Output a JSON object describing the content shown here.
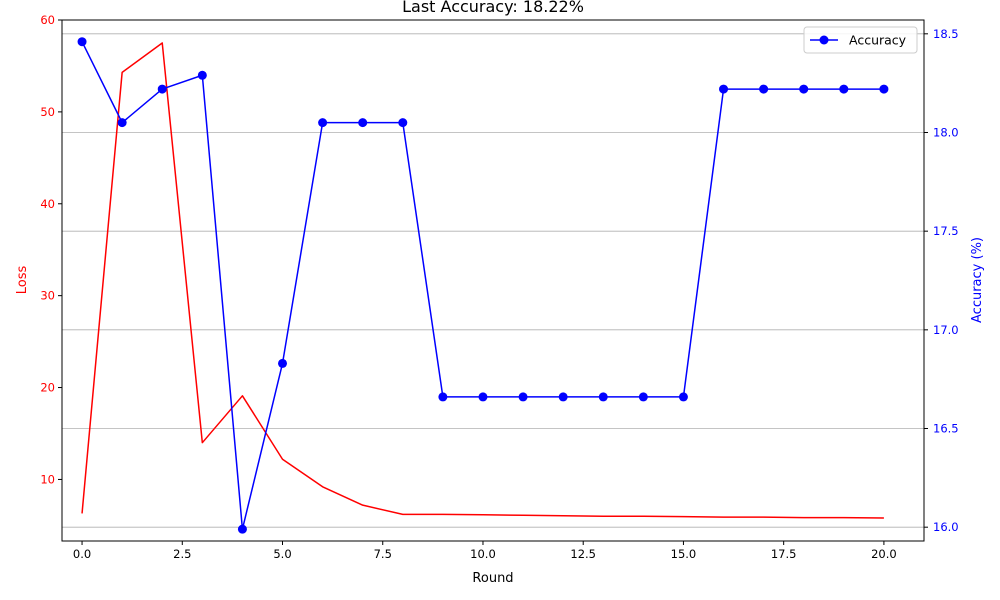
{
  "chart_data": {
    "type": "line",
    "title": "Last Accuracy: 18.22%",
    "xlabel": "Round",
    "ylabel_left": "Loss",
    "ylabel_right": "Accuracy (%)",
    "xlim": [
      -0.5,
      21.0
    ],
    "ylim_left": [
      3.3,
      60.0
    ],
    "ylim_right": [
      15.93,
      18.57
    ],
    "x_ticks": [
      0.0,
      2.5,
      5.0,
      7.5,
      10.0,
      12.5,
      15.0,
      17.5,
      20.0
    ],
    "x_tick_labels": [
      "0.0",
      "2.5",
      "5.0",
      "7.5",
      "10.0",
      "12.5",
      "15.0",
      "17.5",
      "20.0"
    ],
    "y_left_ticks": [
      10,
      20,
      30,
      40,
      50,
      60
    ],
    "y_left_tick_labels": [
      "10",
      "20",
      "30",
      "40",
      "50",
      "60"
    ],
    "y_right_ticks": [
      16.0,
      16.5,
      17.0,
      17.5,
      18.0,
      18.5
    ],
    "y_right_tick_labels": [
      "16.0",
      "16.5",
      "17.0",
      "17.5",
      "18.0",
      "18.5"
    ],
    "grid": "horizontal (right axis)",
    "legend_position": "top-right",
    "x": [
      0,
      1,
      2,
      3,
      4,
      5,
      6,
      7,
      8,
      9,
      10,
      11,
      12,
      13,
      14,
      15,
      16,
      17,
      18,
      19,
      20
    ],
    "series": [
      {
        "name": "",
        "axis": "left",
        "color": "#ff0000",
        "marker": "none",
        "values": [
          6.3,
          54.3,
          57.5,
          14.0,
          19.1,
          12.2,
          9.2,
          7.2,
          6.2,
          6.2,
          6.15,
          6.1,
          6.05,
          6.0,
          6.0,
          5.95,
          5.9,
          5.9,
          5.85,
          5.85,
          5.8
        ]
      },
      {
        "name": "Accuracy",
        "axis": "right",
        "color": "#0000ff",
        "marker": "circle",
        "values": [
          18.46,
          18.05,
          18.22,
          18.29,
          15.99,
          16.83,
          18.05,
          18.05,
          18.05,
          16.66,
          16.66,
          16.66,
          16.66,
          16.66,
          16.66,
          16.66,
          18.22,
          18.22,
          18.22,
          18.22,
          18.22
        ]
      }
    ]
  }
}
